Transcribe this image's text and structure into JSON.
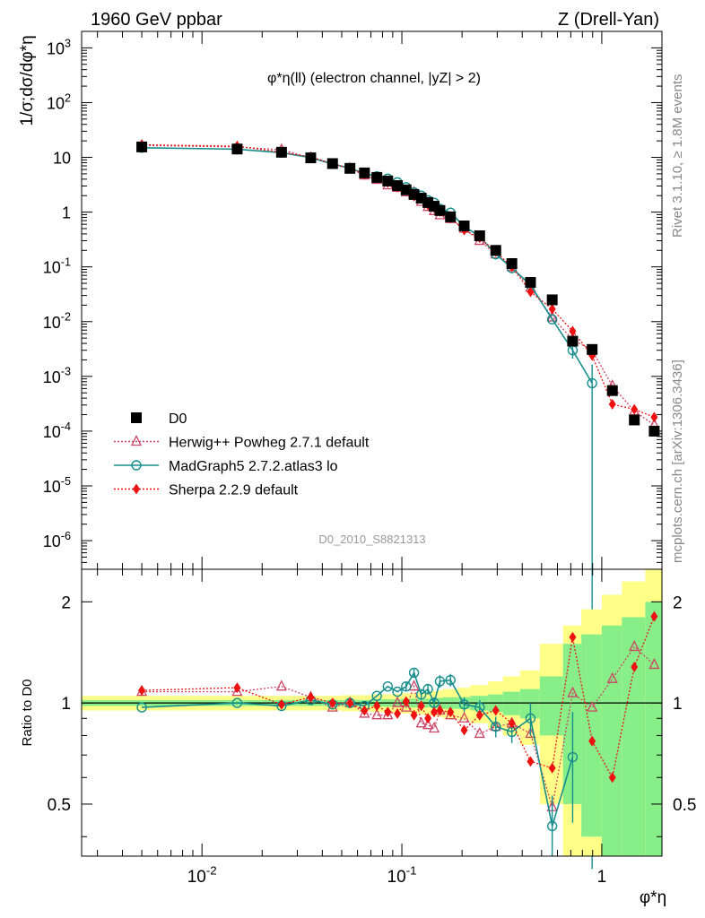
{
  "header": {
    "left": "1960 GeV ppbar",
    "right": "Z (Drell-Yan)"
  },
  "side_text": {
    "rivet": "Rivet 3.1.10, ≥ 1.8M events",
    "mcplots": "mcplots.cern.ch [arXiv:1306.3436]"
  },
  "watermark": "D0_2010_S8821313",
  "colors": {
    "data": "#000000",
    "herwig": "#cc4466",
    "madgraph": "#168e8e",
    "sherpa": "#ee1111",
    "band_outer": "#ffff88",
    "band_inner": "#88ee88"
  },
  "chart_data": [
    {
      "type": "scatter",
      "panel": "main",
      "title": "φ*η(ll) (electron channel, |yZ| > 2)",
      "ylabel": "1/σ;dσ/dφ*η",
      "xscale": "log",
      "yscale": "log",
      "xlim": [
        0.0025,
        2.0
      ],
      "ylim": [
        3e-07,
        2000.0
      ],
      "y_ticks": [
        "10^-6",
        "10^-5",
        "10^-4",
        "10^-3",
        "10^-2",
        "10^-1",
        "1",
        "10",
        "10^2",
        "10^3"
      ],
      "legend_position": "bottom-left",
      "x": [
        0.005,
        0.015,
        0.025,
        0.035,
        0.045,
        0.055,
        0.065,
        0.075,
        0.085,
        0.095,
        0.105,
        0.115,
        0.125,
        0.135,
        0.145,
        0.155,
        0.175,
        0.205,
        0.245,
        0.295,
        0.355,
        0.44,
        0.565,
        0.715,
        0.895,
        1.13,
        1.455,
        1.83
      ],
      "series": [
        {
          "name": "D0",
          "marker": "square",
          "values": [
            15.5,
            14.2,
            12.4,
            9.8,
            7.7,
            6.3,
            5.2,
            4.3,
            3.7,
            3.05,
            2.55,
            2.1,
            1.8,
            1.5,
            1.28,
            1.07,
            0.82,
            0.56,
            0.37,
            0.2,
            0.115,
            0.052,
            0.025,
            0.0044,
            0.0031,
            0.00055,
            0.00016,
            0.0001
          ]
        },
        {
          "name": "Herwig++ Powheg 2.7.1 default",
          "marker": "triangle-open",
          "values": [
            16.5,
            15.5,
            13.8,
            9.8,
            7.4,
            6.3,
            4.7,
            3.9,
            3.1,
            2.8,
            2.3,
            2.3,
            1.55,
            1.25,
            1.05,
            0.88,
            0.75,
            0.5,
            0.3,
            0.17,
            0.1,
            0.042,
            0.012,
            0.0047,
            0.003,
            0.00067,
            0.00023,
            0.00013
          ]
        },
        {
          "name": "MadGraph5 2.7.2.atlas3 lo",
          "marker": "circle-open",
          "values": [
            15.0,
            14.1,
            12.2,
            9.9,
            7.6,
            6.3,
            5.1,
            4.5,
            4.1,
            3.5,
            2.85,
            2.3,
            2.0,
            1.65,
            1.48,
            1.15,
            0.98,
            0.55,
            0.36,
            0.17,
            0.095,
            0.047,
            0.011,
            0.003,
            0.00075,
            null,
            null,
            null
          ],
          "errors": [
            0,
            0,
            0,
            0,
            0,
            0,
            0,
            0,
            0,
            0,
            0,
            0,
            0,
            0,
            0,
            0,
            0,
            0,
            0,
            0,
            0,
            0,
            0,
            0.0009,
            0.0009,
            0,
            0,
            0
          ]
        },
        {
          "name": "Sherpa 2.2.9 default",
          "marker": "diamond",
          "values": [
            17.0,
            16.0,
            12.4,
            10.2,
            7.7,
            6.3,
            4.9,
            4.2,
            3.45,
            2.85,
            2.55,
            1.95,
            1.8,
            1.35,
            1.2,
            1.02,
            0.78,
            0.47,
            0.34,
            0.19,
            0.1,
            0.035,
            0.017,
            0.0067,
            0.0024,
            0.00031,
            0.00025,
            0.00018
          ]
        }
      ]
    },
    {
      "type": "line",
      "panel": "ratio",
      "ylabel": "Ratio to D0",
      "xlabel": "φ*η",
      "xscale": "log",
      "ylim": [
        0.35,
        2.5
      ],
      "x_ticks": [
        "10^-2",
        "10^-1",
        "1"
      ],
      "y_ticks": [
        "0.5",
        "1",
        "2"
      ],
      "band_edges": [
        0.0025,
        0.01,
        0.02,
        0.03,
        0.04,
        0.05,
        0.06,
        0.07,
        0.08,
        0.09,
        0.1,
        0.11,
        0.12,
        0.13,
        0.14,
        0.15,
        0.16,
        0.19,
        0.22,
        0.27,
        0.32,
        0.39,
        0.49,
        0.64,
        0.79,
        1.0,
        1.26,
        1.65,
        2.0
      ],
      "band_inner": [
        0.02,
        0.02,
        0.02,
        0.02,
        0.02,
        0.02,
        0.02,
        0.025,
        0.025,
        0.025,
        0.03,
        0.03,
        0.03,
        0.03,
        0.035,
        0.035,
        0.04,
        0.04,
        0.05,
        0.06,
        0.08,
        0.1,
        0.2,
        0.5,
        0.6,
        0.7,
        0.8,
        1.0
      ],
      "band_outer": [
        0.05,
        0.05,
        0.05,
        0.05,
        0.05,
        0.055,
        0.055,
        0.06,
        0.06,
        0.065,
        0.07,
        0.07,
        0.075,
        0.08,
        0.085,
        0.09,
        0.1,
        0.11,
        0.13,
        0.16,
        0.2,
        0.25,
        0.5,
        0.7,
        0.9,
        1.1,
        1.3,
        1.5
      ],
      "x": [
        0.005,
        0.015,
        0.025,
        0.035,
        0.045,
        0.055,
        0.065,
        0.075,
        0.085,
        0.095,
        0.105,
        0.115,
        0.125,
        0.135,
        0.145,
        0.155,
        0.175,
        0.205,
        0.245,
        0.295,
        0.355,
        0.44,
        0.565,
        0.715,
        0.895,
        1.13,
        1.455,
        1.83
      ],
      "series": [
        {
          "name": "Herwig++ Powheg 2.7.1 default",
          "marker": "triangle-open",
          "values": [
            1.08,
            1.08,
            1.12,
            1.04,
            0.97,
            1.0,
            0.93,
            0.92,
            0.92,
            1.0,
            0.97,
            1.12,
            0.87,
            0.86,
            0.84,
            0.95,
            0.92,
            0.9,
            0.81,
            0.85,
            0.87,
            0.81,
            0.49,
            1.07,
            0.97,
            1.18,
            1.47,
            1.3
          ]
        },
        {
          "name": "MadGraph5 2.7.2.atlas3 lo",
          "marker": "circle-open",
          "values": [
            0.97,
            1.0,
            0.98,
            1.02,
            0.99,
            1.0,
            0.98,
            1.05,
            1.12,
            1.08,
            1.12,
            1.23,
            1.06,
            1.1,
            1.0,
            1.16,
            1.17,
            0.99,
            0.97,
            0.85,
            0.82,
            0.9,
            0.43,
            0.69,
            null,
            null,
            null,
            null
          ],
          "errors": [
            0,
            0,
            0,
            0,
            0,
            0,
            0,
            0,
            0,
            0,
            0.03,
            0.04,
            0.04,
            0.04,
            0.04,
            0.05,
            0.05,
            0.05,
            0.05,
            0.06,
            0.06,
            0.1,
            0.1,
            0.25,
            0,
            0,
            0,
            0
          ]
        },
        {
          "name": "Sherpa 2.2.9 default",
          "marker": "diamond",
          "values": [
            1.09,
            1.11,
            0.99,
            1.04,
            1.0,
            1.0,
            0.95,
            0.98,
            0.94,
            0.93,
            1.01,
            0.92,
            0.98,
            0.9,
            0.94,
            0.95,
            0.94,
            0.83,
            0.92,
            0.95,
            0.87,
            0.67,
            0.64,
            1.57,
            0.77,
            0.6,
            1.28,
            1.81
          ]
        }
      ]
    }
  ]
}
